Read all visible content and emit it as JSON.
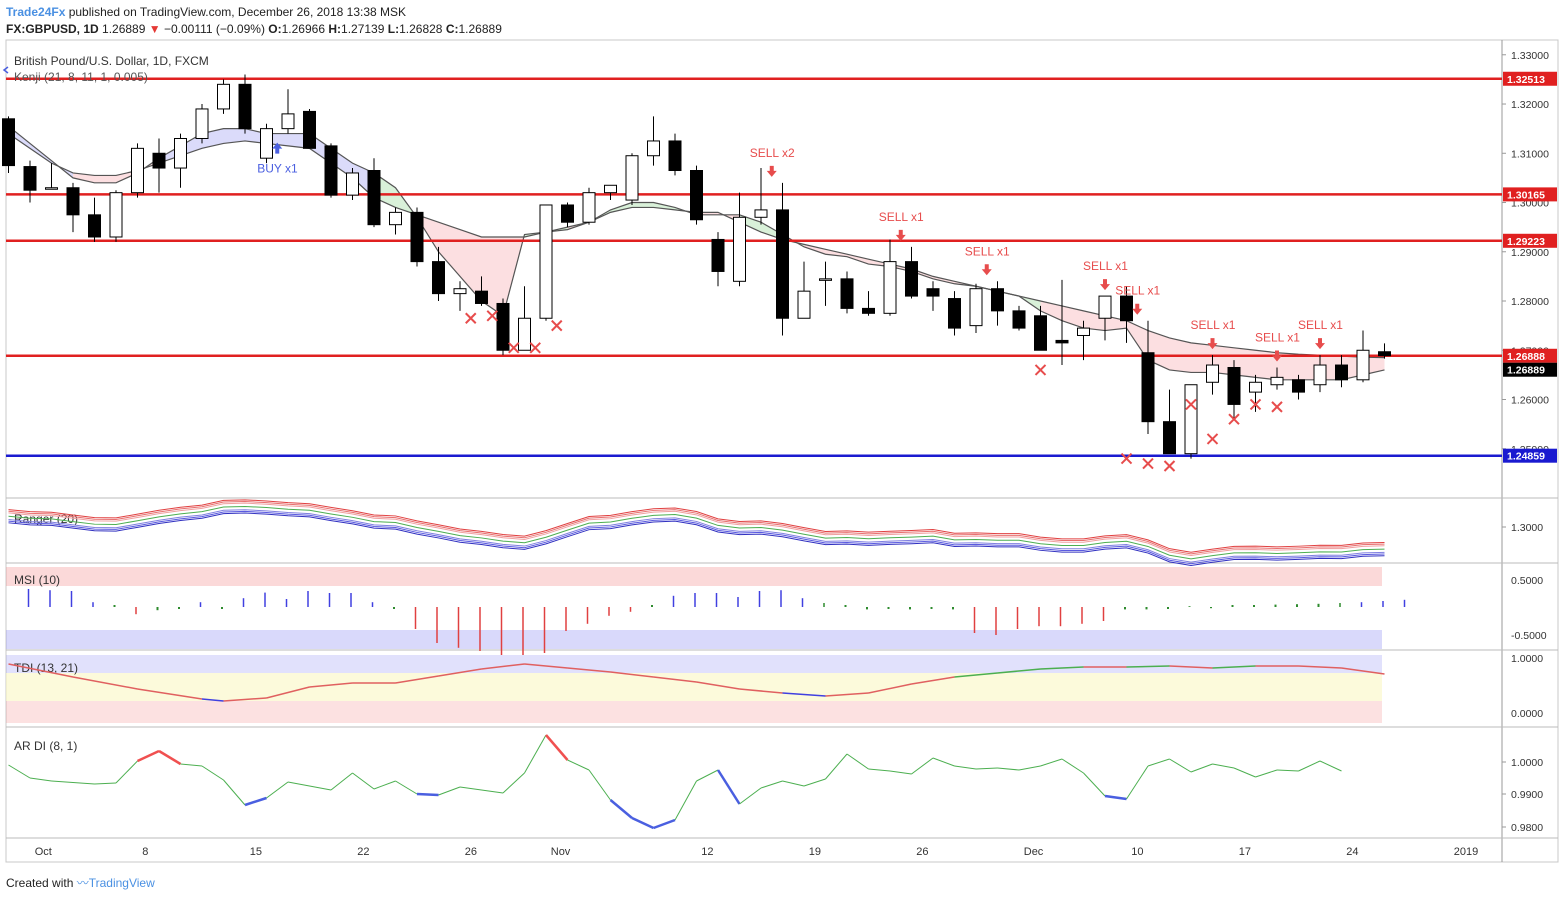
{
  "header": {
    "brand": "Trade24Fx",
    "published": " published on TradingView.com, December 26, 2018 13:38 MSK",
    "symbol": "FX:GBPUSD, 1D",
    "last": " 1.26889",
    "change": " −0.00111 (−0.09%)",
    "o_label": " O:",
    "o": "1.26966",
    "h_label": " H:",
    "h": "1.27139",
    "l_label": " L:",
    "l": "1.26828",
    "c_label": " C:",
    "c": "1.26889"
  },
  "footer": {
    "created": "Created with ",
    "tv": "TradingView"
  },
  "chart_data": {
    "type": "candlestick",
    "title": "British Pound/U.S. Dollar, 1D, FXCM",
    "indicator_label": "Kenji (21, 8, 11, 1, 0.005)",
    "y_range": [
      1.24,
      1.333
    ],
    "y_ticks": [
      "1.33000",
      "1.32000",
      "1.31000",
      "1.30000",
      "1.29000",
      "1.28000",
      "1.27000",
      "1.26000",
      "1.25000"
    ],
    "x_labels": [
      {
        "i": 1.5,
        "t": "Oct"
      },
      {
        "i": 6.5,
        "t": "8"
      },
      {
        "i": 11.5,
        "t": "15"
      },
      {
        "i": 16.5,
        "t": "22"
      },
      {
        "i": 21.5,
        "t": "26"
      },
      {
        "i": 25.5,
        "t": "Nov"
      },
      {
        "i": 32.5,
        "t": "12"
      },
      {
        "i": 37.5,
        "t": "19"
      },
      {
        "i": 42.5,
        "t": "26"
      },
      {
        "i": 47.5,
        "t": "Dec"
      },
      {
        "i": 52.5,
        "t": "10"
      },
      {
        "i": 57.5,
        "t": "17"
      },
      {
        "i": 62.5,
        "t": "24"
      },
      {
        "i": 67.5,
        "t": "2019"
      }
    ],
    "candles": [
      [
        1.317,
        1.3175,
        1.306,
        1.3075
      ],
      [
        1.3073,
        1.3085,
        1.3,
        1.3025
      ],
      [
        1.303,
        1.308,
        1.303,
        1.303
      ],
      [
        1.303,
        1.304,
        1.294,
        1.2975
      ],
      [
        1.2975,
        1.301,
        1.292,
        1.293
      ],
      [
        1.293,
        1.3025,
        1.292,
        1.302
      ],
      [
        1.302,
        1.312,
        1.301,
        1.311
      ],
      [
        1.31,
        1.313,
        1.302,
        1.307
      ],
      [
        1.307,
        1.314,
        1.303,
        1.313
      ],
      [
        1.313,
        1.32,
        1.312,
        1.319
      ],
      [
        1.319,
        1.325,
        1.318,
        1.324
      ],
      [
        1.324,
        1.326,
        1.314,
        1.315
      ],
      [
        1.309,
        1.316,
        1.308,
        1.315
      ],
      [
        1.315,
        1.323,
        1.314,
        1.318
      ],
      [
        1.3185,
        1.319,
        1.311,
        1.311
      ],
      [
        1.3115,
        1.312,
        1.301,
        1.3015
      ],
      [
        1.3015,
        1.307,
        1.3005,
        1.306
      ],
      [
        1.3065,
        1.309,
        1.295,
        1.2955
      ],
      [
        1.2955,
        1.299,
        1.2935,
        1.298
      ],
      [
        1.298,
        1.299,
        1.287,
        1.288
      ],
      [
        1.288,
        1.291,
        1.28,
        1.2815
      ],
      [
        1.2815,
        1.284,
        1.278,
        1.2825
      ],
      [
        1.282,
        1.285,
        1.279,
        1.2795
      ],
      [
        1.2795,
        1.2805,
        1.269,
        1.27
      ],
      [
        1.27,
        1.283,
        1.27,
        1.2765
      ],
      [
        1.2765,
        1.299,
        1.276,
        1.2995
      ],
      [
        1.2995,
        1.3,
        1.295,
        1.296
      ],
      [
        1.296,
        1.303,
        1.2955,
        1.302
      ],
      [
        1.302,
        1.303,
        1.3005,
        1.3035
      ],
      [
        1.3005,
        1.31,
        1.2995,
        1.3095
      ],
      [
        1.3095,
        1.3175,
        1.3075,
        1.3125
      ],
      [
        1.3125,
        1.314,
        1.3055,
        1.3065
      ],
      [
        1.3065,
        1.3075,
        1.2955,
        1.2965
      ],
      [
        1.2925,
        1.294,
        1.283,
        1.286
      ],
      [
        1.284,
        1.302,
        1.283,
        1.297
      ],
      [
        1.297,
        1.307,
        1.2955,
        1.2985
      ],
      [
        1.2985,
        1.304,
        1.273,
        1.2765
      ],
      [
        1.2765,
        1.288,
        1.2765,
        1.282
      ],
      [
        1.2845,
        1.288,
        1.279,
        1.2845
      ],
      [
        1.2845,
        1.286,
        1.2775,
        1.2785
      ],
      [
        1.2785,
        1.282,
        1.277,
        1.2775
      ],
      [
        1.2775,
        1.2925,
        1.277,
        1.288
      ],
      [
        1.288,
        1.291,
        1.2805,
        1.281
      ],
      [
        1.2825,
        1.284,
        1.278,
        1.281
      ],
      [
        1.2805,
        1.282,
        1.273,
        1.2745
      ],
      [
        1.275,
        1.2835,
        1.2735,
        1.2825
      ],
      [
        1.2825,
        1.284,
        1.275,
        1.278
      ],
      [
        1.278,
        1.279,
        1.274,
        1.2745
      ],
      [
        1.277,
        1.279,
        1.27,
        1.27
      ],
      [
        1.272,
        1.2843,
        1.267,
        1.2715
      ],
      [
        1.273,
        1.276,
        1.268,
        1.2745
      ],
      [
        1.2765,
        1.281,
        1.272,
        1.281
      ],
      [
        1.281,
        1.283,
        1.2715,
        1.276
      ],
      [
        1.2695,
        1.276,
        1.253,
        1.2555
      ],
      [
        1.2555,
        1.262,
        1.249,
        1.249
      ],
      [
        1.249,
        1.263,
        1.248,
        1.263
      ],
      [
        1.2635,
        1.269,
        1.261,
        1.267
      ],
      [
        1.2665,
        1.268,
        1.256,
        1.259
      ],
      [
        1.2615,
        1.265,
        1.2575,
        1.2635
      ],
      [
        1.263,
        1.2665,
        1.262,
        1.2645
      ],
      [
        1.264,
        1.265,
        1.26,
        1.2615
      ],
      [
        1.263,
        1.269,
        1.2615,
        1.267
      ],
      [
        1.267,
        1.269,
        1.2625,
        1.264
      ],
      [
        1.264,
        1.274,
        1.2635,
        1.27
      ],
      [
        1.2697,
        1.2714,
        1.2683,
        1.2689
      ]
    ],
    "kenji_fast": [
      1.3155,
      1.312,
      1.3085,
      1.305,
      1.304,
      1.304,
      1.306,
      1.309,
      1.3115,
      1.314,
      1.315,
      1.315,
      1.314,
      1.314,
      1.314,
      1.311,
      1.308,
      1.306,
      1.303,
      1.297,
      1.29,
      1.285,
      1.28,
      1.277,
      1.2935,
      1.294,
      1.2945,
      1.296,
      1.2985,
      1.3,
      1.3,
      1.299,
      1.2975,
      1.2975,
      1.2975,
      1.296,
      1.2935,
      1.291,
      1.2895,
      1.289,
      1.2875,
      1.287,
      1.286,
      1.2845,
      1.2835,
      1.283,
      1.282,
      1.281,
      1.278,
      1.276,
      1.2745,
      1.274,
      1.2745,
      1.268,
      1.266,
      1.2655,
      1.2655,
      1.265,
      1.2645,
      1.264,
      1.264,
      1.264,
      1.264,
      1.265,
      1.266
    ],
    "kenji_slow": [
      1.314,
      1.311,
      1.308,
      1.306,
      1.3055,
      1.3055,
      1.3065,
      1.308,
      1.3095,
      1.311,
      1.312,
      1.3125,
      1.312,
      1.3115,
      1.311,
      1.308,
      1.305,
      1.301,
      1.299,
      1.2975,
      1.296,
      1.2945,
      1.293,
      1.293,
      1.293,
      1.294,
      1.295,
      1.296,
      1.298,
      1.299,
      1.299,
      1.2985,
      1.298,
      1.298,
      1.296,
      1.294,
      1.2925,
      1.2915,
      1.2905,
      1.2895,
      1.2885,
      1.2875,
      1.2865,
      1.285,
      1.284,
      1.283,
      1.282,
      1.281,
      1.28,
      1.279,
      1.278,
      1.277,
      1.276,
      1.274,
      1.2725,
      1.2715,
      1.271,
      1.2705,
      1.27,
      1.2695,
      1.2692,
      1.269,
      1.2688,
      1.2686,
      1.2685
    ],
    "levels": [
      {
        "price": 1.32513,
        "label": "1.32513",
        "color": "#e02020"
      },
      {
        "price": 1.30165,
        "label": "1.30165",
        "color": "#e02020"
      },
      {
        "price": 1.29223,
        "label": "1.29223",
        "color": "#e02020"
      },
      {
        "price": 1.26888,
        "label": "1.26888",
        "color": "#e02020"
      },
      {
        "price": 1.24859,
        "label": "1.24859",
        "color": "#1a1ad0"
      }
    ],
    "last_price_label": "1.26889",
    "signals": [
      {
        "i": 12.5,
        "t": "BUY x1",
        "side": "buy"
      },
      {
        "i": 35.5,
        "t": "SELL x2",
        "side": "sell"
      },
      {
        "i": 41.5,
        "t": "SELL x1",
        "side": "sell"
      },
      {
        "i": 45.5,
        "t": "SELL x1",
        "side": "sell"
      },
      {
        "i": 51,
        "t": "SELL x1",
        "side": "sell"
      },
      {
        "i": 52.5,
        "t": "SELL x1",
        "side": "sell"
      },
      {
        "i": 56,
        "t": "SELL x1",
        "side": "sell"
      },
      {
        "i": 59,
        "t": "SELL x1",
        "side": "sell"
      },
      {
        "i": 61,
        "t": "SELL x1",
        "side": "sell"
      }
    ],
    "crosses": [
      [
        21.5,
        1.2765
      ],
      [
        22.5,
        1.277
      ],
      [
        23.5,
        1.2705
      ],
      [
        24.5,
        1.2705
      ],
      [
        25.5,
        1.275
      ],
      [
        48,
        1.266
      ],
      [
        52,
        1.248
      ],
      [
        53,
        1.247
      ],
      [
        54,
        1.2465
      ],
      [
        55,
        1.259
      ],
      [
        56,
        1.252
      ],
      [
        57,
        1.256
      ],
      [
        58,
        1.259
      ],
      [
        59,
        1.2585
      ]
    ],
    "panes": {
      "ranger": {
        "label": "Ranger (20)",
        "tick": "1.3000"
      },
      "msi": {
        "label": "MSI (10)",
        "ticks": [
          "0.5000",
          "-0.5000"
        ],
        "values": [
          0.45,
          0.42,
          0.4,
          0.12,
          0.05,
          -0.18,
          -0.08,
          -0.05,
          0.12,
          -0.05,
          0.22,
          0.36,
          0.2,
          0.4,
          0.35,
          0.35,
          0.12,
          -0.05,
          -0.55,
          -0.9,
          -1.02,
          -1.1,
          -1.2,
          -1.2,
          -1.15,
          -0.6,
          -0.42,
          -0.22,
          -0.12,
          0.05,
          0.28,
          0.35,
          0.35,
          0.25,
          0.4,
          0.42,
          0.22,
          0.1,
          0.05,
          -0.06,
          -0.05,
          -0.06,
          -0.05,
          -0.06,
          -0.65,
          -0.7,
          -0.55,
          -0.48,
          -0.48,
          -0.42,
          -0.35,
          -0.06,
          -0.06,
          -0.05,
          0.02,
          -0.03,
          0.05,
          0.05,
          0.06,
          0.07,
          0.08,
          0.1,
          0.12,
          0.15,
          0.18
        ]
      },
      "tdi": {
        "label": "TDI (13, 21)",
        "ticks": [
          "1.0000",
          "0.0000"
        ]
      },
      "ardi": {
        "label": "AR DI (8, 1)",
        "ticks": [
          "1.0000",
          "0.9900",
          "0.9800"
        ]
      }
    }
  }
}
